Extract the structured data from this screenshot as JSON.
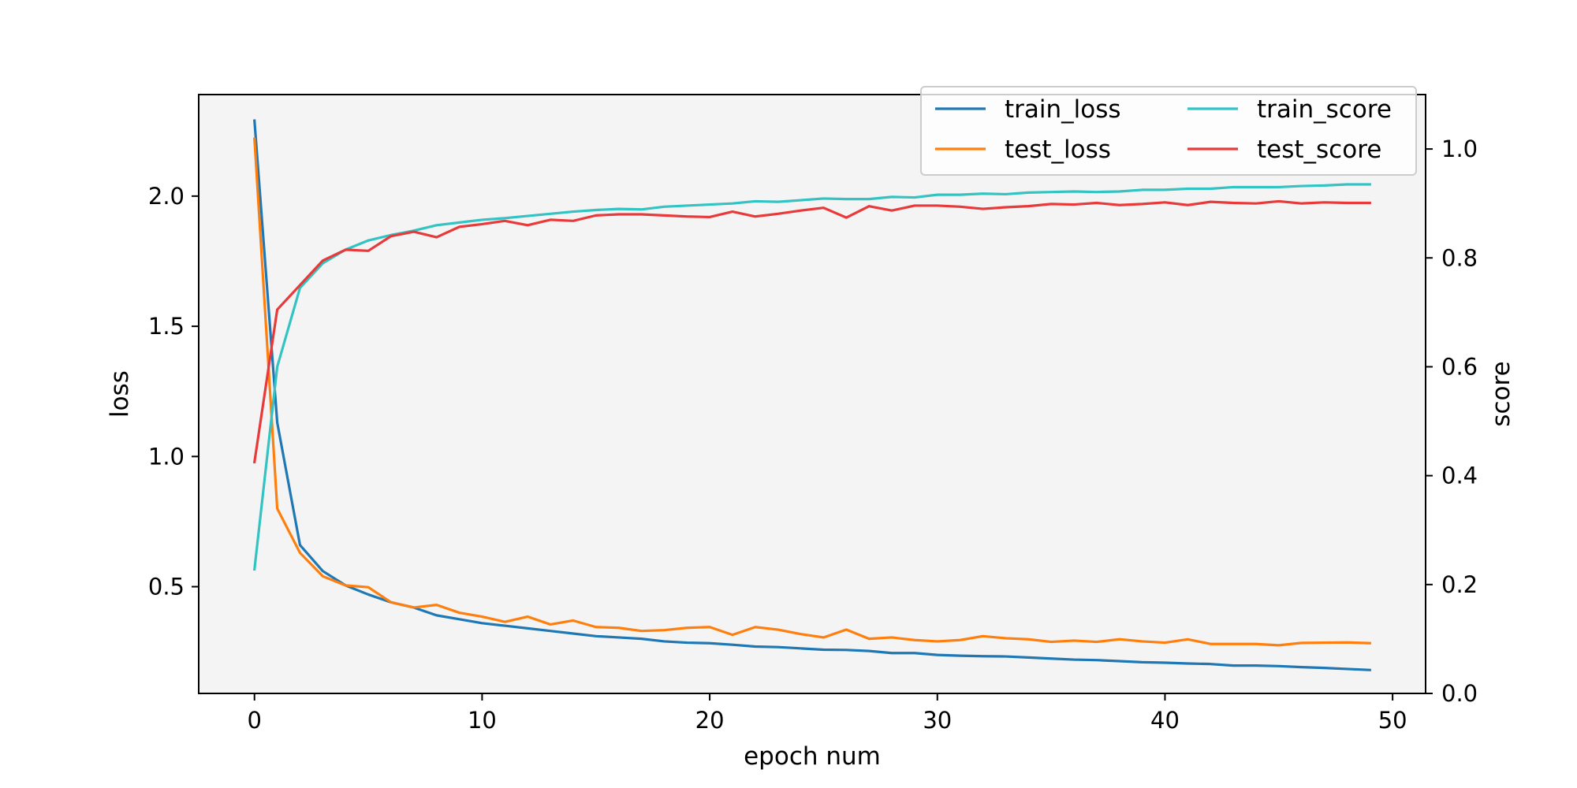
{
  "chart_data": {
    "type": "line",
    "xlabel": "epoch num",
    "ylabel_left": "loss",
    "ylabel_right": "score",
    "xlim": [
      -2.45,
      51.45
    ],
    "ylim_left": [
      0.09,
      2.39
    ],
    "ylim_right": [
      0.0,
      1.1
    ],
    "x_ticks": [
      0,
      10,
      20,
      30,
      40,
      50
    ],
    "y_left_ticks": [
      0.5,
      1.0,
      1.5,
      2.0
    ],
    "y_right_ticks": [
      0.0,
      0.2,
      0.4,
      0.6,
      0.8,
      1.0
    ],
    "legend_position": "top-right",
    "legend_columns": 2,
    "background": "#f4f4f4",
    "x": [
      0,
      1,
      2,
      3,
      4,
      5,
      6,
      7,
      8,
      9,
      10,
      11,
      12,
      13,
      14,
      15,
      16,
      17,
      18,
      19,
      20,
      21,
      22,
      23,
      24,
      25,
      26,
      27,
      28,
      29,
      30,
      31,
      32,
      33,
      34,
      35,
      36,
      37,
      38,
      39,
      40,
      41,
      42,
      43,
      44,
      45,
      46,
      47,
      48,
      49
    ],
    "series": [
      {
        "name": "train_loss",
        "axis": "left",
        "color": "#1f77b4",
        "values": [
          2.29,
          1.13,
          0.66,
          0.56,
          0.505,
          0.47,
          0.44,
          0.42,
          0.39,
          0.375,
          0.36,
          0.35,
          0.34,
          0.33,
          0.32,
          0.31,
          0.305,
          0.3,
          0.29,
          0.285,
          0.283,
          0.277,
          0.27,
          0.268,
          0.263,
          0.258,
          0.257,
          0.253,
          0.245,
          0.245,
          0.238,
          0.235,
          0.233,
          0.232,
          0.228,
          0.224,
          0.22,
          0.218,
          0.214,
          0.21,
          0.208,
          0.205,
          0.203,
          0.197,
          0.197,
          0.195,
          0.191,
          0.188,
          0.184,
          0.18
        ]
      },
      {
        "name": "test_loss",
        "axis": "left",
        "color": "#ff7f0e",
        "values": [
          2.22,
          0.8,
          0.63,
          0.54,
          0.505,
          0.498,
          0.44,
          0.42,
          0.43,
          0.4,
          0.385,
          0.365,
          0.385,
          0.355,
          0.37,
          0.345,
          0.342,
          0.33,
          0.333,
          0.342,
          0.345,
          0.315,
          0.345,
          0.335,
          0.318,
          0.305,
          0.335,
          0.3,
          0.305,
          0.295,
          0.29,
          0.295,
          0.31,
          0.302,
          0.298,
          0.288,
          0.293,
          0.288,
          0.298,
          0.29,
          0.285,
          0.298,
          0.28,
          0.28,
          0.28,
          0.275,
          0.284,
          0.285,
          0.286,
          0.283
        ]
      },
      {
        "name": "train_score",
        "axis": "right",
        "color": "#33c3c3",
        "values": [
          0.228,
          0.6,
          0.745,
          0.79,
          0.815,
          0.832,
          0.842,
          0.85,
          0.86,
          0.865,
          0.87,
          0.873,
          0.877,
          0.881,
          0.885,
          0.888,
          0.89,
          0.889,
          0.894,
          0.896,
          0.898,
          0.9,
          0.904,
          0.903,
          0.906,
          0.909,
          0.908,
          0.908,
          0.912,
          0.911,
          0.916,
          0.916,
          0.918,
          0.917,
          0.92,
          0.921,
          0.922,
          0.921,
          0.922,
          0.925,
          0.925,
          0.927,
          0.927,
          0.93,
          0.93,
          0.93,
          0.932,
          0.933,
          0.935,
          0.935
        ]
      },
      {
        "name": "test_score",
        "axis": "right",
        "color": "#e83a3a",
        "values": [
          0.425,
          0.705,
          0.75,
          0.795,
          0.815,
          0.813,
          0.84,
          0.848,
          0.838,
          0.857,
          0.862,
          0.868,
          0.86,
          0.87,
          0.868,
          0.878,
          0.88,
          0.88,
          0.878,
          0.876,
          0.875,
          0.885,
          0.876,
          0.881,
          0.887,
          0.892,
          0.874,
          0.895,
          0.887,
          0.896,
          0.896,
          0.894,
          0.89,
          0.893,
          0.895,
          0.899,
          0.898,
          0.901,
          0.897,
          0.899,
          0.902,
          0.897,
          0.903,
          0.901,
          0.9,
          0.904,
          0.9,
          0.902,
          0.901,
          0.901
        ]
      }
    ]
  }
}
